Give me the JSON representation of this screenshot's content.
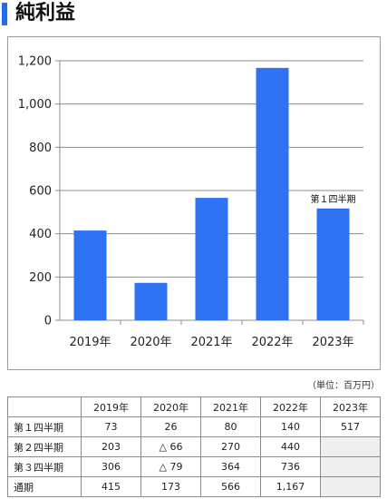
{
  "title": "純利益",
  "unit_note": "（単位：百万円）",
  "colors": {
    "accent": "#1e6ff0",
    "bar": "#2c72f2",
    "grid": "#8c8c8c",
    "empty_cell": "#efefef"
  },
  "chart_data": {
    "type": "bar",
    "categories": [
      "2019年",
      "2020年",
      "2021年",
      "2022年",
      "2023年"
    ],
    "values": [
      415,
      173,
      566,
      1167,
      517
    ],
    "ylim": [
      0,
      1200
    ],
    "yticks": [
      0,
      200,
      400,
      600,
      800,
      1000,
      1200
    ],
    "ytick_labels": [
      "0",
      "200",
      "400",
      "600",
      "800",
      "1,000",
      "1,200"
    ],
    "grid": true,
    "annotations": [
      {
        "category": "2023年",
        "text": "第１四半期"
      }
    ],
    "title": "",
    "xlabel": "",
    "ylabel": ""
  },
  "table": {
    "headers": [
      "",
      "2019年",
      "2020年",
      "2021年",
      "2022年",
      "2023年"
    ],
    "rows": [
      {
        "label": "第１四半期",
        "cells": [
          "73",
          "26",
          "80",
          "140",
          "517"
        ]
      },
      {
        "label": "第２四半期",
        "cells": [
          "203",
          "△ 66",
          "270",
          "440",
          ""
        ]
      },
      {
        "label": "第３四半期",
        "cells": [
          "306",
          "△ 79",
          "364",
          "736",
          ""
        ]
      },
      {
        "label": "通期",
        "cells": [
          "415",
          "173",
          "566",
          "1,167",
          ""
        ]
      }
    ]
  }
}
